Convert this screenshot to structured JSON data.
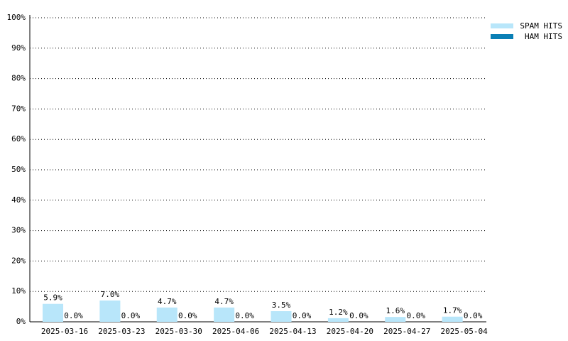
{
  "chart_data": {
    "type": "bar",
    "categories": [
      "2025-03-16",
      "2025-03-23",
      "2025-03-30",
      "2025-04-06",
      "2025-04-13",
      "2025-04-20",
      "2025-04-27",
      "2025-05-04"
    ],
    "series": [
      {
        "name": "SPAM HITS",
        "color": "#b8e6fa",
        "values": [
          5.9,
          7.0,
          4.7,
          4.7,
          3.5,
          1.2,
          1.6,
          1.7
        ],
        "value_labels": [
          "5.9%",
          "7.0%",
          "4.7%",
          "4.7%",
          "3.5%",
          "1.2%",
          "1.6%",
          "1.7%"
        ]
      },
      {
        "name": "HAM HITS",
        "color": "#0a7fb5",
        "values": [
          0.0,
          0.0,
          0.0,
          0.0,
          0.0,
          0.0,
          0.0,
          0.0
        ],
        "value_labels": [
          "0.0%",
          "0.0%",
          "0.0%",
          "0.0%",
          "0.0%",
          "0.0%",
          "0.0%",
          "0.0%"
        ]
      }
    ],
    "ylim": [
      0,
      100
    ],
    "yticks": [
      {
        "value": 0,
        "label": "0%"
      },
      {
        "value": 10,
        "label": "10%"
      },
      {
        "value": 20,
        "label": "20%"
      },
      {
        "value": 30,
        "label": "30%"
      },
      {
        "value": 40,
        "label": "40%"
      },
      {
        "value": 50,
        "label": "50%"
      },
      {
        "value": 60,
        "label": "60%"
      },
      {
        "value": 70,
        "label": "70%"
      },
      {
        "value": 80,
        "label": "80%"
      },
      {
        "value": 90,
        "label": "90%"
      },
      {
        "value": 100,
        "label": "100%"
      }
    ],
    "grid": true,
    "legend": "top-right"
  }
}
